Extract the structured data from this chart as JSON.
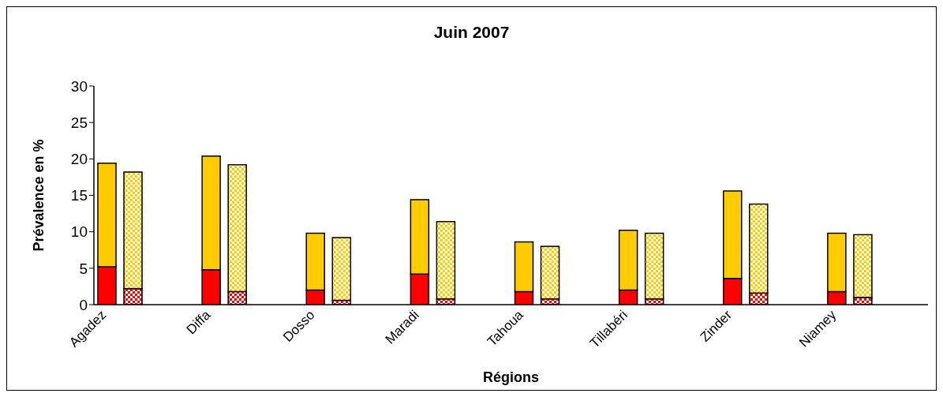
{
  "chart_data": {
    "type": "bar",
    "title": "Juin 2007",
    "xlabel": "Régions",
    "ylabel": "Prévalence en %",
    "categories": [
      "Agadez",
      null,
      null,
      null,
      "Diffa",
      null,
      null,
      null,
      "Dosso",
      null,
      null,
      null,
      "Maradi",
      null,
      null,
      null,
      "Tahoua",
      null,
      null,
      null,
      "Tillabéri",
      null,
      null,
      null,
      "Zinder",
      null,
      null,
      null,
      "Niamey",
      null,
      null,
      null
    ],
    "stacked": true,
    "ylim": [
      0,
      30
    ],
    "yticks": [
      0,
      5,
      10,
      15,
      20,
      25,
      30
    ],
    "grid": false,
    "legend": false,
    "series": [
      {
        "color": "#ff0000",
        "values": [
          5.2,
          null,
          null,
          null,
          4.8,
          null,
          null,
          null,
          2.0,
          null,
          null,
          null,
          4.2,
          null,
          null,
          null,
          1.8,
          null,
          null,
          null,
          2.0,
          null,
          null,
          null,
          3.6,
          null,
          null,
          null,
          1.8,
          null,
          null,
          null
        ]
      },
      {
        "color": "#ffcc00",
        "values": [
          14.2,
          null,
          null,
          null,
          15.6,
          null,
          null,
          null,
          7.8,
          null,
          null,
          null,
          10.2,
          null,
          null,
          null,
          6.8,
          null,
          null,
          null,
          8.2,
          null,
          null,
          null,
          12.0,
          null,
          null,
          null,
          8.0,
          null,
          null,
          null
        ]
      },
      {
        "color": "#ff0000",
        "values": [
          null,
          2.2,
          null,
          null,
          null,
          1.8,
          null,
          null,
          null,
          0.6,
          null,
          null,
          null,
          0.8,
          null,
          null,
          null,
          0.8,
          null,
          null,
          null,
          0.8,
          null,
          null,
          null,
          1.6,
          null,
          null,
          null,
          1.0,
          null,
          null
        ]
      },
      {
        "color": "#ffcc00",
        "values": [
          null,
          16.0,
          null,
          null,
          null,
          17.4,
          null,
          null,
          null,
          8.6,
          null,
          null,
          null,
          10.6,
          null,
          null,
          null,
          7.2,
          null,
          null,
          null,
          9.0,
          null,
          null,
          null,
          12.2,
          null,
          null,
          null,
          8.6,
          null,
          null
        ]
      }
    ]
  }
}
